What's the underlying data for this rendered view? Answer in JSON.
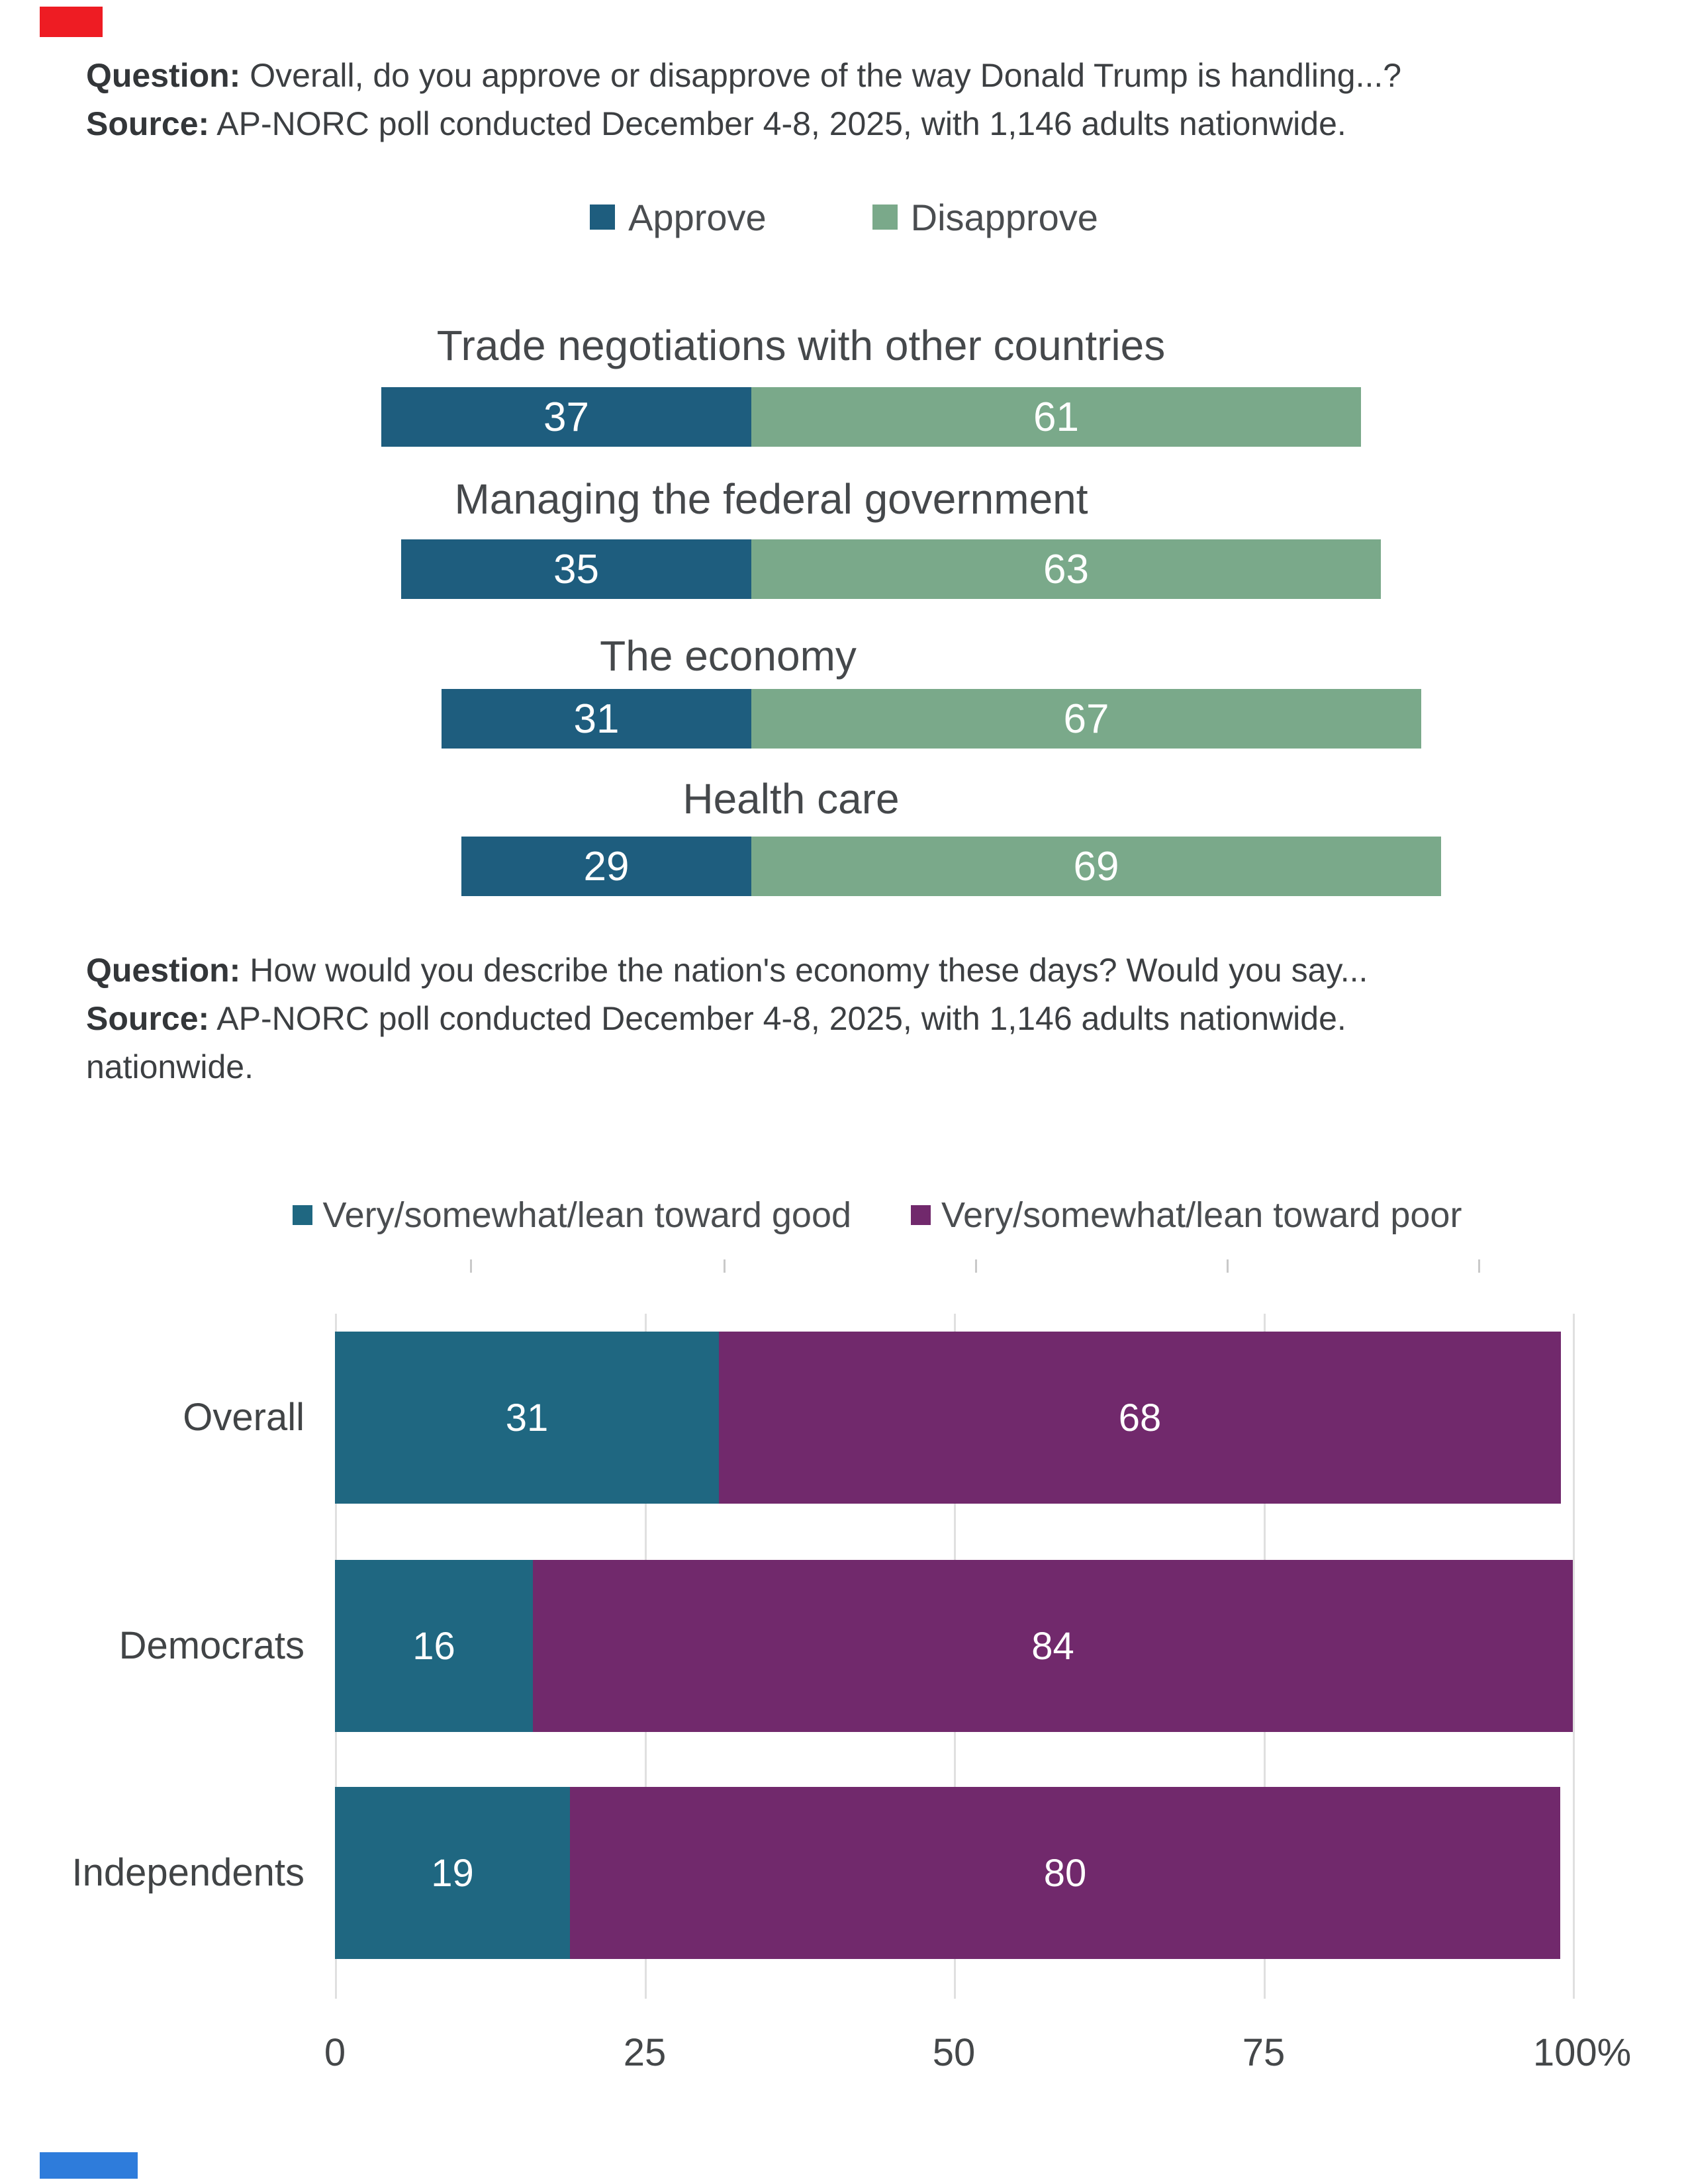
{
  "header1": {
    "question_label": "Question:",
    "question_text": " Overall, do you approve or disapprove of the way Donald Trump is handling...?",
    "source_label": "Source:",
    "source_text": " AP-NORC poll conducted December 4-8, 2025, with 1,146 adults nationwide."
  },
  "header2": {
    "question_label": "Question:",
    "question_text": " How would you describe the nation's economy these days? Would you say...",
    "source_label": "Source:",
    "source_text": " AP-NORC poll conducted December 4-8, 2025, with 1,146 adults nationwide.",
    "source_text_line2": "nationwide."
  },
  "artifacts": {
    "top_left_block_color": "#ee1c23",
    "bottom_left_block_color": "#2e7cdb"
  },
  "chart_data": [
    {
      "type": "bar",
      "layout": "horizontal-diverging-stacked",
      "legend_position": "top-center",
      "grid": false,
      "xlim": [
        0,
        100
      ],
      "categories": [
        "Trade negotiations with other countries",
        "Managing the federal government",
        "The economy",
        "Health care"
      ],
      "series": [
        {
          "name": "Approve",
          "color": "#1e5d7e",
          "values": [
            37,
            35,
            31,
            29
          ]
        },
        {
          "name": "Disapprove",
          "color": "#7aa98a",
          "values": [
            61,
            63,
            67,
            69
          ]
        }
      ],
      "value_labels": "inside, white"
    },
    {
      "type": "bar",
      "layout": "horizontal-stacked",
      "legend_position": "top-center",
      "grid": true,
      "xlim": [
        0,
        100
      ],
      "x_tick_labels": [
        "0",
        "25",
        "50",
        "75",
        "100%"
      ],
      "categories": [
        "Overall",
        "Democrats",
        "Independents"
      ],
      "series": [
        {
          "name": "Very/somewhat/lean toward good",
          "color": "#1f6781",
          "values": [
            31,
            16,
            19
          ]
        },
        {
          "name": "Very/somewhat/lean toward poor",
          "color": "#71296c",
          "values": [
            68,
            84,
            80
          ]
        }
      ],
      "value_labels": "inside, white"
    }
  ]
}
